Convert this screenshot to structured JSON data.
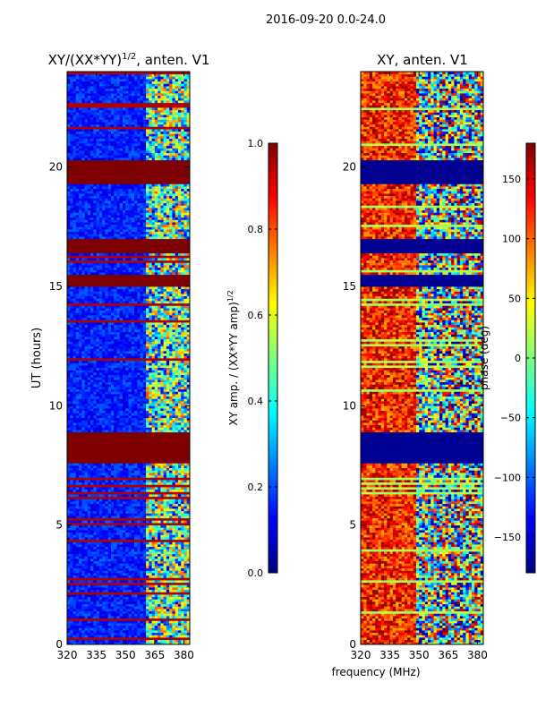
{
  "figure_title": "2016-09-20 0.0-24.0",
  "colors": {
    "jet_stops": [
      "#00007f",
      "#0000ff",
      "#007fff",
      "#00ffff",
      "#7fff7f",
      "#ffff00",
      "#ff7f00",
      "#ff0000",
      "#7f0000"
    ]
  },
  "chart_data": [
    {
      "type": "heatmap",
      "title_main": "XY/(XX*YY)",
      "title_sup": "1/2",
      "title_rest": ", anten. V1",
      "ylabel": "UT (hours)",
      "xlim": [
        320,
        383
      ],
      "ylim": [
        0,
        24
      ],
      "xticks": [
        {
          "v": 320,
          "label": "320"
        },
        {
          "v": 335,
          "label": "335"
        },
        {
          "v": 350,
          "label": "350"
        },
        {
          "v": 365,
          "label": "365"
        },
        {
          "v": 380,
          "label": "380"
        }
      ],
      "yticks": [
        {
          "v": 0,
          "label": "0"
        },
        {
          "v": 5,
          "label": "5"
        },
        {
          "v": 10,
          "label": "10"
        },
        {
          "v": 15,
          "label": "15"
        },
        {
          "v": 20,
          "label": "20"
        }
      ],
      "saturated_bands_hours": [
        [
          7.6,
          8.9
        ],
        [
          19.3,
          20.3
        ],
        [
          15.0,
          15.5
        ],
        [
          16.4,
          17.0
        ]
      ],
      "colorbar": {
        "vmin": 0.0,
        "vmax": 1.0,
        "label_main": "XY amp. / (XX*YY amp)",
        "label_sup": "1/2",
        "ticks": [
          {
            "v": 0.0,
            "label": "0.0"
          },
          {
            "v": 0.2,
            "label": "0.2"
          },
          {
            "v": 0.4,
            "label": "0.4"
          },
          {
            "v": 0.6,
            "label": "0.6"
          },
          {
            "v": 0.8,
            "label": "0.8"
          },
          {
            "v": 1.0,
            "label": "1.0"
          }
        ]
      }
    },
    {
      "type": "heatmap",
      "title": "XY, anten. V1",
      "xlabel": "frequency (MHz)",
      "xlim": [
        320,
        383
      ],
      "ylim": [
        0,
        24
      ],
      "xticks": [
        {
          "v": 320,
          "label": "320"
        },
        {
          "v": 335,
          "label": "335"
        },
        {
          "v": 350,
          "label": "350"
        },
        {
          "v": 365,
          "label": "365"
        },
        {
          "v": 380,
          "label": "380"
        }
      ],
      "yticks": [
        {
          "v": 0,
          "label": "0"
        },
        {
          "v": 5,
          "label": "5"
        },
        {
          "v": 10,
          "label": "10"
        },
        {
          "v": 15,
          "label": "15"
        },
        {
          "v": 20,
          "label": "20"
        }
      ],
      "flagged_bands_hours": [
        [
          7.6,
          8.9
        ],
        [
          19.3,
          20.3
        ],
        [
          15.0,
          15.5
        ],
        [
          16.4,
          17.0
        ]
      ],
      "colorbar": {
        "vmin": -180,
        "vmax": 180,
        "label": "phase (deg)",
        "ticks": [
          {
            "v": 150,
            "label": "150"
          },
          {
            "v": 100,
            "label": "100"
          },
          {
            "v": 50,
            "label": "50"
          },
          {
            "v": 0,
            "label": "0"
          },
          {
            "v": -50,
            "label": "−50"
          },
          {
            "v": -100,
            "label": "−100"
          },
          {
            "v": -150,
            "label": "−150"
          }
        ]
      }
    }
  ]
}
